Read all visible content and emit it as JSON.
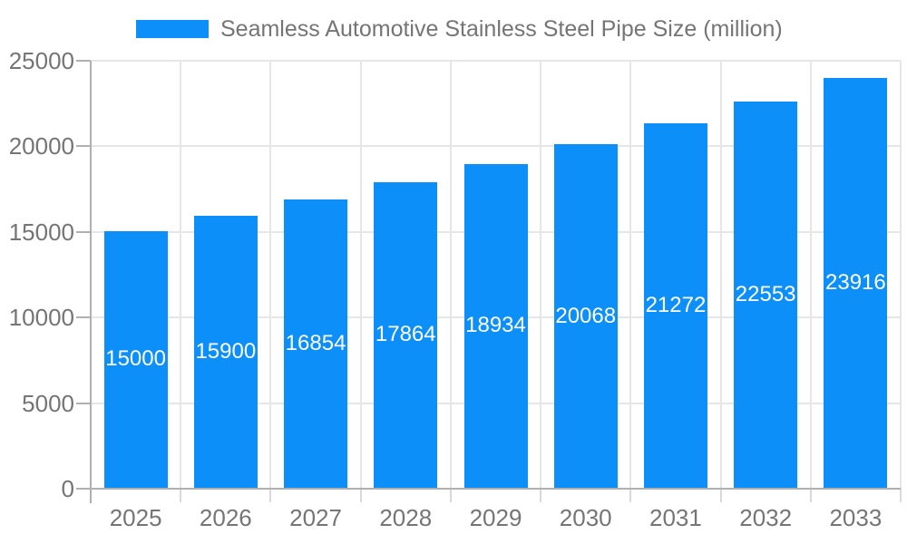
{
  "chart_data": {
    "type": "bar",
    "title": "Seamless Automotive Stainless Steel Pipe Size (million)",
    "categories": [
      "2025",
      "2026",
      "2027",
      "2028",
      "2029",
      "2030",
      "2031",
      "2032",
      "2033"
    ],
    "values": [
      15000,
      15900,
      16854,
      17864,
      18934,
      20068,
      21272,
      22553,
      23916
    ],
    "xlabel": "",
    "ylabel": "",
    "ylim": [
      0,
      25000
    ],
    "yticks": [
      0,
      5000,
      10000,
      15000,
      20000,
      25000
    ],
    "grid": "on",
    "legend_position": "top",
    "colors": {
      "bar": "#0d8ff9",
      "value_label": "#ffffff",
      "axis_text": "#757575",
      "gridline": "#e6e6e6",
      "axis_line": "#b0b0b0",
      "boundary_tick": "#d9d9d9",
      "background": "#ffffff"
    }
  }
}
